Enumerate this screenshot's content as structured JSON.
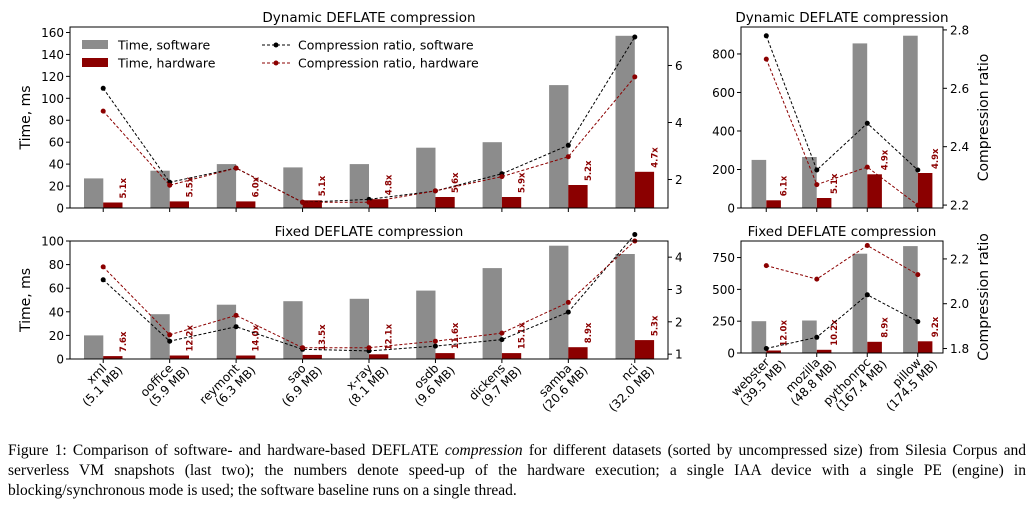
{
  "caption": {
    "prefix": "Figure 1: Comparison of software- and hardware-based DEFLATE ",
    "emph": "compression",
    "suffix": " for different datasets (sorted by uncompressed size) from Silesia Corpus and serverless VM snapshots (last two); the numbers denote speed-up of the hardware execution; a single IAA device with a single PE (engine) in blocking/synchronous mode is used; the software baseline runs on a single thread."
  },
  "colors": {
    "software_bar": "#8c8c8c",
    "hardware_bar": "#8b0000",
    "software_line": "#000000",
    "hardware_line": "#8b0000",
    "speedup_label": "#8b0000"
  },
  "chart_data": [
    {
      "id": "dyn-left",
      "type": "bar+line",
      "title": "Dynamic DEFLATE compression",
      "ylabel": "Time, ms",
      "y2label": "",
      "ylim": [
        0,
        165
      ],
      "yticks": [
        0,
        20,
        40,
        60,
        80,
        100,
        120,
        140,
        160
      ],
      "y2lim": [
        1.0,
        7.35
      ],
      "y2ticks": [
        2,
        4,
        6
      ],
      "categories": [
        "xml",
        "ooffice",
        "reymont",
        "sao",
        "x-ray",
        "osdb",
        "dickens",
        "samba",
        "nci"
      ],
      "series": [
        {
          "name": "Time, software",
          "kind": "bar",
          "values": [
            27,
            34,
            40,
            37,
            40,
            55,
            60,
            112,
            157
          ]
        },
        {
          "name": "Time, hardware",
          "kind": "bar",
          "values": [
            5,
            6,
            6,
            7,
            8,
            10,
            10,
            21,
            33
          ]
        },
        {
          "name": "Compression ratio, software",
          "kind": "line",
          "values": [
            5.2,
            1.9,
            2.4,
            1.2,
            1.3,
            1.6,
            2.2,
            3.2,
            7.0
          ]
        },
        {
          "name": "Compression ratio, hardware",
          "kind": "line",
          "values": [
            4.4,
            1.8,
            2.4,
            1.2,
            1.2,
            1.6,
            2.1,
            2.8,
            5.6
          ]
        }
      ],
      "speedups": [
        "5.1x",
        "5.5x",
        "6.0x",
        "5.1x",
        "4.8x",
        "5.6x",
        "5.9x",
        "5.2x",
        "4.7x"
      ],
      "legend": "top"
    },
    {
      "id": "dyn-right",
      "type": "bar+line",
      "title": "Dynamic DEFLATE compression",
      "ylabel": "",
      "y2label": "Compression ratio",
      "ylim": [
        0,
        940
      ],
      "yticks": [
        0,
        200,
        400,
        600,
        800
      ],
      "y2lim": [
        2.19,
        2.81
      ],
      "y2ticks": [
        2.2,
        2.4,
        2.6,
        2.8
      ],
      "categories": [
        "webster",
        "mozilla",
        "pythonrpc",
        "pillow"
      ],
      "series": [
        {
          "name": "Time, software",
          "kind": "bar",
          "values": [
            250,
            265,
            855,
            895
          ]
        },
        {
          "name": "Time, hardware",
          "kind": "bar",
          "values": [
            40,
            52,
            175,
            182
          ]
        },
        {
          "name": "Compression ratio, software",
          "kind": "line",
          "values": [
            2.78,
            2.32,
            2.48,
            2.32
          ]
        },
        {
          "name": "Compression ratio, hardware",
          "kind": "line",
          "values": [
            2.7,
            2.27,
            2.33,
            2.2
          ]
        }
      ],
      "speedups": [
        "6.1x",
        "5.1x",
        "4.9x",
        "4.9x"
      ]
    },
    {
      "id": "fix-left",
      "type": "bar+line",
      "title": "Fixed DEFLATE compression",
      "ylabel": "Time, ms",
      "y2label": "",
      "ylim": [
        0,
        100
      ],
      "yticks": [
        0,
        20,
        40,
        60,
        80,
        100
      ],
      "y2lim": [
        0.85,
        4.5
      ],
      "y2ticks": [
        1,
        2,
        3,
        4
      ],
      "categories": [
        "xml",
        "ooffice",
        "reymont",
        "sao",
        "x-ray",
        "osdb",
        "dickens",
        "samba",
        "nci"
      ],
      "xticklabels": [
        [
          "xml",
          "(5.1 MB)"
        ],
        [
          "ooffice",
          "(5.9 MB)"
        ],
        [
          "reymont",
          "(6.3 MB)"
        ],
        [
          "sao",
          "(6.9 MB)"
        ],
        [
          "x-ray",
          "(8.1 MB)"
        ],
        [
          "osdb",
          "(9.6 MB)"
        ],
        [
          "dickens",
          "(9.7 MB)"
        ],
        [
          "samba",
          "(20.6 MB)"
        ],
        [
          "nci",
          "(32.0 MB)"
        ]
      ],
      "series": [
        {
          "name": "Time, software",
          "kind": "bar",
          "values": [
            20,
            38,
            46,
            49,
            51,
            58,
            77,
            96,
            89
          ]
        },
        {
          "name": "Time, hardware",
          "kind": "bar",
          "values": [
            2.5,
            3,
            3,
            3.5,
            4,
            5,
            5,
            10,
            16
          ]
        },
        {
          "name": "Compression ratio, software",
          "kind": "line",
          "values": [
            3.3,
            1.4,
            1.85,
            1.15,
            1.1,
            1.25,
            1.45,
            2.3,
            4.7
          ]
        },
        {
          "name": "Compression ratio, hardware",
          "kind": "line",
          "values": [
            3.7,
            1.6,
            2.2,
            1.2,
            1.2,
            1.4,
            1.65,
            2.6,
            4.5
          ]
        }
      ],
      "speedups": [
        "7.6x",
        "12.2x",
        "14.0x",
        "13.5x",
        "12.1x",
        "11.6x",
        "15.1x",
        "8.9x",
        "5.3x"
      ]
    },
    {
      "id": "fix-right",
      "type": "bar+line",
      "title": "Fixed DEFLATE compression",
      "ylabel": "",
      "y2label": "Compression ratio",
      "ylim": [
        0,
        880
      ],
      "yticks": [
        0,
        250,
        500,
        750
      ],
      "y2lim": [
        1.78,
        2.28
      ],
      "y2ticks": [
        1.8,
        2.0,
        2.2
      ],
      "categories": [
        "webster",
        "mozilla",
        "pythonrpc",
        "pillow"
      ],
      "xticklabels": [
        [
          "webster",
          "(39.5 MB)"
        ],
        [
          "mozilla",
          "(48.8 MB)"
        ],
        [
          "pythonrpc",
          "(167.4 MB)"
        ],
        [
          "pillow",
          "(174.5 MB)"
        ]
      ],
      "series": [
        {
          "name": "Time, software",
          "kind": "bar",
          "values": [
            250,
            255,
            780,
            840
          ]
        },
        {
          "name": "Time, hardware",
          "kind": "bar",
          "values": [
            20,
            25,
            88,
            92
          ]
        },
        {
          "name": "Compression ratio, software",
          "kind": "line",
          "values": [
            1.8,
            1.85,
            2.04,
            1.92
          ]
        },
        {
          "name": "Compression ratio, hardware",
          "kind": "line",
          "values": [
            2.17,
            2.11,
            2.26,
            2.13
          ]
        }
      ],
      "speedups": [
        "12.0x",
        "10.2x",
        "8.9x",
        "9.2x"
      ]
    }
  ]
}
